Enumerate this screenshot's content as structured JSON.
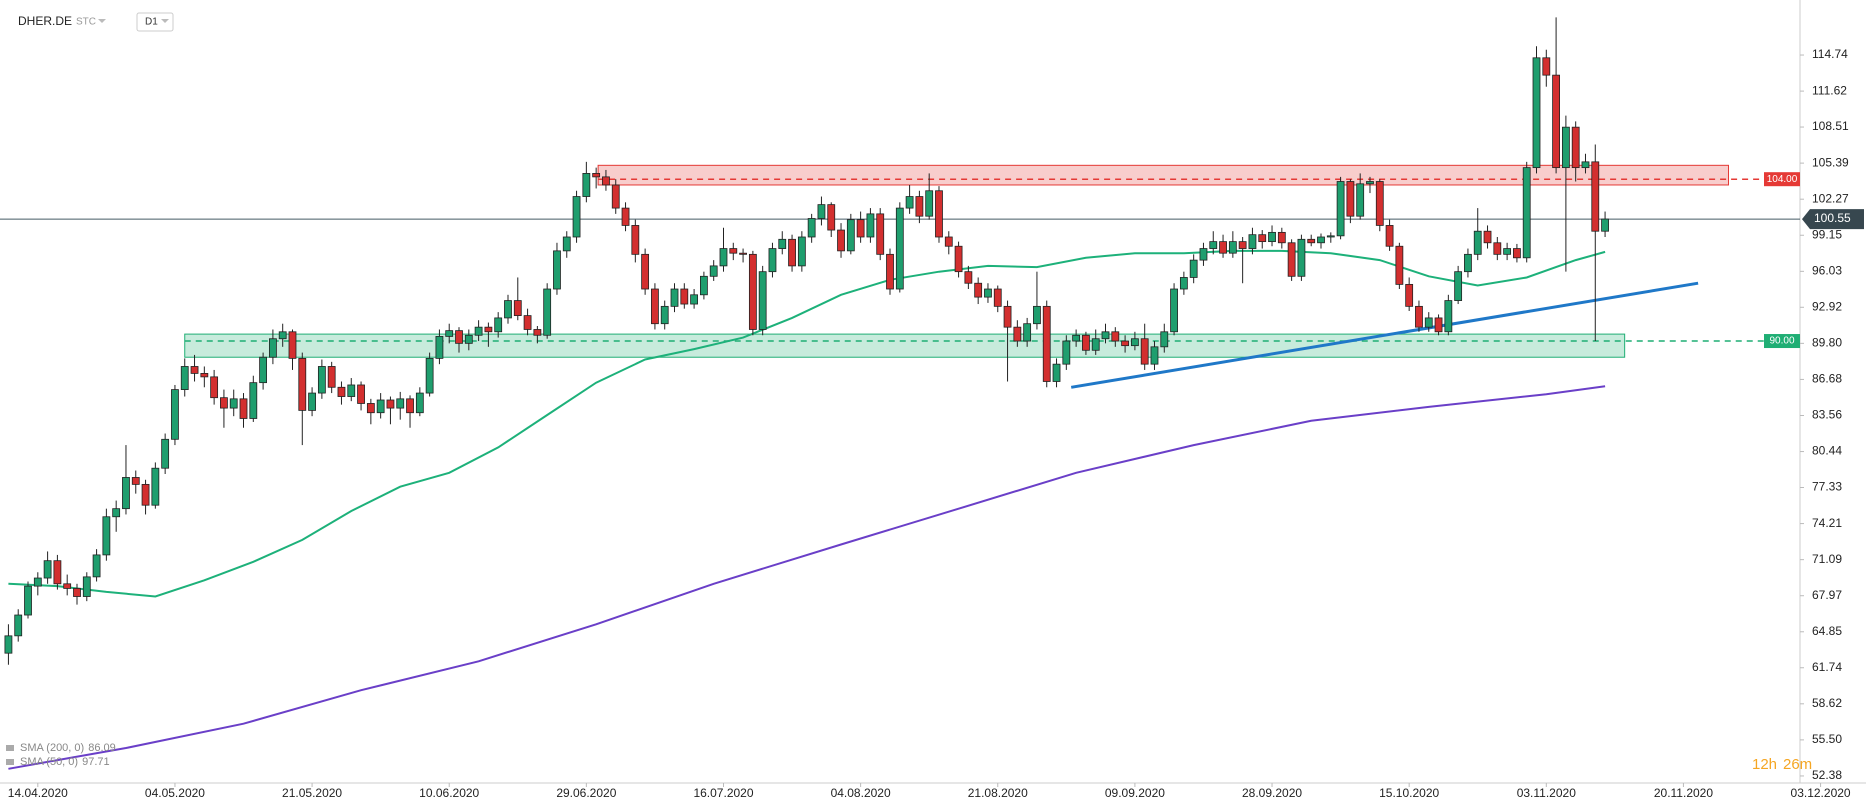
{
  "chart_data": {
    "type": "candlestick",
    "symbol": "DHER.DE",
    "instrument_type": "STC",
    "timeframe": "D1",
    "up_color": "#1f9e6e",
    "down_color": "#d32f2f",
    "ohlc": [
      [
        63.0,
        65.5,
        62.0,
        64.5
      ],
      [
        64.5,
        66.8,
        64.0,
        66.3
      ],
      [
        66.3,
        69.2,
        66.0,
        68.8
      ],
      [
        68.8,
        70.0,
        68.0,
        69.5
      ],
      [
        69.5,
        71.8,
        69.0,
        71.0
      ],
      [
        71.0,
        71.5,
        68.5,
        69.0
      ],
      [
        69.0,
        69.8,
        68.0,
        68.6
      ],
      [
        68.6,
        69.0,
        67.2,
        67.9
      ],
      [
        67.9,
        70.0,
        67.5,
        69.6
      ],
      [
        69.6,
        72.0,
        69.2,
        71.5
      ],
      [
        71.5,
        75.5,
        71.0,
        74.8
      ],
      [
        74.8,
        76.2,
        73.5,
        75.5
      ],
      [
        75.5,
        81.0,
        75.0,
        78.2
      ],
      [
        78.2,
        78.8,
        76.8,
        77.6
      ],
      [
        77.6,
        78.0,
        75.0,
        75.8
      ],
      [
        75.8,
        79.5,
        75.5,
        79.0
      ],
      [
        79.0,
        82.0,
        78.5,
        81.5
      ],
      [
        81.5,
        86.2,
        81.0,
        85.8
      ],
      [
        85.8,
        88.5,
        85.2,
        87.8
      ],
      [
        87.8,
        88.8,
        86.5,
        87.2
      ],
      [
        87.2,
        87.8,
        86.0,
        86.9
      ],
      [
        86.9,
        87.5,
        84.5,
        85.1
      ],
      [
        85.1,
        85.8,
        82.5,
        84.2
      ],
      [
        84.2,
        85.8,
        83.5,
        85.0
      ],
      [
        85.0,
        85.5,
        82.5,
        83.3
      ],
      [
        83.3,
        87.0,
        83.0,
        86.4
      ],
      [
        86.4,
        89.0,
        85.8,
        88.6
      ],
      [
        88.6,
        91.0,
        88.0,
        90.2
      ],
      [
        90.2,
        91.5,
        89.5,
        90.8
      ],
      [
        90.8,
        91.0,
        87.5,
        88.5
      ],
      [
        88.5,
        89.0,
        81.0,
        84.0
      ],
      [
        84.0,
        86.0,
        83.5,
        85.5
      ],
      [
        85.5,
        88.4,
        85.0,
        87.8
      ],
      [
        87.8,
        88.2,
        85.5,
        86.0
      ],
      [
        86.0,
        86.5,
        84.5,
        85.2
      ],
      [
        85.2,
        86.8,
        84.8,
        86.2
      ],
      [
        86.2,
        86.5,
        84.0,
        84.6
      ],
      [
        84.6,
        85.0,
        82.8,
        83.8
      ],
      [
        83.8,
        85.5,
        83.3,
        84.9
      ],
      [
        84.9,
        85.2,
        82.8,
        84.2
      ],
      [
        84.2,
        85.6,
        83.2,
        85.0
      ],
      [
        85.0,
        85.3,
        82.5,
        83.8
      ],
      [
        83.8,
        86.0,
        83.5,
        85.5
      ],
      [
        85.5,
        89.0,
        85.2,
        88.5
      ],
      [
        88.5,
        91.0,
        88.0,
        90.4
      ],
      [
        90.4,
        91.5,
        89.8,
        90.9
      ],
      [
        90.9,
        91.2,
        89.0,
        89.8
      ],
      [
        89.8,
        91.0,
        89.2,
        90.5
      ],
      [
        90.5,
        91.8,
        90.0,
        91.2
      ],
      [
        91.2,
        91.6,
        89.5,
        90.8
      ],
      [
        90.8,
        92.5,
        90.3,
        92.0
      ],
      [
        92.0,
        94.0,
        91.5,
        93.5
      ],
      [
        93.5,
        95.5,
        91.8,
        92.2
      ],
      [
        92.2,
        92.8,
        90.5,
        91.0
      ],
      [
        91.0,
        91.3,
        89.8,
        90.5
      ],
      [
        90.5,
        95.0,
        90.2,
        94.5
      ],
      [
        94.5,
        98.5,
        94.0,
        97.8
      ],
      [
        97.8,
        99.5,
        97.2,
        99.0
      ],
      [
        99.0,
        103.0,
        98.5,
        102.5
      ],
      [
        102.5,
        105.5,
        102.0,
        104.5
      ],
      [
        104.5,
        105.0,
        103.2,
        104.2
      ],
      [
        104.2,
        104.8,
        103.0,
        103.5
      ],
      [
        103.5,
        104.0,
        101.0,
        101.5
      ],
      [
        101.5,
        102.0,
        99.5,
        100.0
      ],
      [
        100.0,
        100.5,
        96.8,
        97.5
      ],
      [
        97.5,
        98.0,
        94.0,
        94.5
      ],
      [
        94.5,
        95.0,
        91.0,
        91.5
      ],
      [
        91.5,
        93.5,
        91.0,
        93.0
      ],
      [
        93.0,
        95.0,
        92.5,
        94.5
      ],
      [
        94.5,
        95.0,
        92.8,
        93.2
      ],
      [
        93.2,
        94.5,
        92.8,
        94.0
      ],
      [
        94.0,
        96.0,
        93.6,
        95.6
      ],
      [
        95.6,
        97.0,
        95.2,
        96.5
      ],
      [
        96.5,
        99.8,
        96.0,
        98.0
      ],
      [
        98.0,
        98.5,
        97.0,
        97.6
      ],
      [
        97.6,
        98.0,
        96.8,
        97.5
      ],
      [
        97.5,
        97.8,
        90.5,
        91.0
      ],
      [
        91.0,
        96.5,
        90.5,
        96.0
      ],
      [
        96.0,
        98.5,
        95.5,
        98.0
      ],
      [
        98.0,
        99.5,
        97.5,
        98.8
      ],
      [
        98.8,
        99.2,
        96.0,
        96.5
      ],
      [
        96.5,
        99.5,
        96.0,
        99.0
      ],
      [
        99.0,
        101.0,
        98.5,
        100.6
      ],
      [
        100.6,
        102.5,
        100.0,
        101.8
      ],
      [
        101.8,
        102.0,
        99.0,
        99.6
      ],
      [
        99.6,
        100.2,
        97.2,
        97.8
      ],
      [
        97.8,
        101.0,
        97.5,
        100.5
      ],
      [
        100.5,
        101.2,
        98.5,
        99.0
      ],
      [
        99.0,
        101.5,
        98.5,
        101.0
      ],
      [
        101.0,
        101.5,
        97.0,
        97.5
      ],
      [
        97.5,
        98.0,
        94.0,
        94.5
      ],
      [
        94.5,
        102.0,
        94.2,
        101.5
      ],
      [
        101.5,
        103.5,
        101.0,
        102.5
      ],
      [
        102.5,
        103.0,
        100.2,
        100.8
      ],
      [
        100.8,
        104.5,
        100.5,
        103.0
      ],
      [
        103.0,
        103.4,
        98.5,
        99.0
      ],
      [
        99.0,
        99.5,
        97.5,
        98.2
      ],
      [
        98.2,
        98.6,
        95.5,
        96.0
      ],
      [
        96.0,
        96.5,
        94.5,
        95.0
      ],
      [
        95.0,
        95.5,
        93.2,
        93.8
      ],
      [
        93.8,
        95.0,
        93.3,
        94.5
      ],
      [
        94.5,
        94.8,
        92.5,
        93.0
      ],
      [
        93.0,
        93.5,
        86.5,
        91.2
      ],
      [
        91.2,
        91.8,
        89.5,
        90.0
      ],
      [
        90.0,
        92.0,
        89.5,
        91.5
      ],
      [
        91.5,
        96.0,
        91.0,
        93.0
      ],
      [
        93.0,
        93.5,
        86.0,
        86.5
      ],
      [
        86.5,
        88.5,
        86.0,
        88.0
      ],
      [
        88.0,
        90.5,
        87.5,
        90.0
      ],
      [
        90.0,
        91.0,
        89.5,
        90.5
      ],
      [
        90.5,
        90.8,
        88.8,
        89.2
      ],
      [
        89.2,
        91.0,
        88.8,
        90.2
      ],
      [
        90.2,
        91.5,
        89.8,
        90.8
      ],
      [
        90.8,
        91.2,
        89.5,
        90.0
      ],
      [
        90.0,
        90.5,
        89.0,
        89.6
      ],
      [
        89.6,
        90.8,
        89.2,
        90.2
      ],
      [
        90.2,
        91.5,
        87.5,
        88.0
      ],
      [
        88.0,
        90.0,
        87.5,
        89.5
      ],
      [
        89.5,
        91.5,
        89.0,
        90.8
      ],
      [
        90.8,
        95.0,
        90.5,
        94.5
      ],
      [
        94.5,
        96.0,
        94.0,
        95.5
      ],
      [
        95.5,
        97.5,
        95.0,
        97.0
      ],
      [
        97.0,
        98.5,
        96.5,
        98.0
      ],
      [
        98.0,
        99.5,
        97.5,
        98.6
      ],
      [
        98.6,
        99.2,
        97.2,
        97.6
      ],
      [
        97.6,
        99.5,
        97.2,
        98.6
      ],
      [
        98.6,
        99.0,
        95.0,
        98.0
      ],
      [
        98.0,
        99.8,
        97.5,
        99.2
      ],
      [
        99.2,
        99.6,
        98.0,
        98.6
      ],
      [
        98.6,
        100.0,
        98.2,
        99.4
      ],
      [
        99.4,
        99.8,
        98.0,
        98.5
      ],
      [
        98.5,
        98.8,
        95.2,
        95.6
      ],
      [
        95.6,
        99.2,
        95.2,
        98.8
      ],
      [
        98.8,
        99.2,
        98.2,
        98.5
      ],
      [
        98.5,
        99.3,
        98.0,
        99.0
      ],
      [
        99.0,
        99.4,
        98.5,
        99.1
      ],
      [
        99.1,
        104.2,
        98.8,
        103.8
      ],
      [
        103.8,
        104.0,
        100.2,
        100.8
      ],
      [
        100.8,
        104.5,
        100.5,
        103.6
      ],
      [
        103.6,
        104.2,
        102.8,
        103.8
      ],
      [
        103.8,
        104.0,
        99.5,
        100.0
      ],
      [
        100.0,
        100.5,
        97.8,
        98.2
      ],
      [
        98.2,
        98.5,
        94.5,
        94.9
      ],
      [
        94.9,
        95.5,
        92.6,
        93.0
      ],
      [
        93.0,
        93.5,
        90.8,
        91.2
      ],
      [
        91.2,
        92.5,
        90.8,
        92.0
      ],
      [
        92.0,
        92.3,
        90.5,
        90.8
      ],
      [
        90.8,
        94.0,
        90.5,
        93.5
      ],
      [
        93.5,
        96.5,
        93.2,
        96.0
      ],
      [
        96.0,
        98.0,
        95.5,
        97.5
      ],
      [
        97.5,
        101.5,
        97.0,
        99.5
      ],
      [
        99.5,
        100.0,
        98.0,
        98.5
      ],
      [
        98.5,
        99.0,
        97.0,
        97.5
      ],
      [
        97.5,
        98.5,
        97.0,
        98.0
      ],
      [
        98.0,
        98.4,
        96.8,
        97.2
      ],
      [
        97.2,
        105.5,
        96.8,
        105.0
      ],
      [
        105.0,
        115.5,
        104.5,
        114.5
      ],
      [
        114.5,
        115.2,
        112.0,
        113.0
      ],
      [
        113.0,
        118.0,
        104.5,
        105.0
      ],
      [
        105.0,
        109.5,
        96.0,
        108.5
      ],
      [
        108.5,
        109.0,
        103.8,
        105.0
      ],
      [
        105.0,
        106.2,
        104.5,
        105.5
      ],
      [
        105.5,
        107.0,
        90.0,
        99.5
      ],
      [
        99.5,
        101.2,
        99.0,
        100.55
      ]
    ],
    "sma": [
      {
        "name": "SMA (200, 0)",
        "color": "#6a3fc8",
        "x": [
          0,
          12,
          24,
          36,
          48,
          60,
          72,
          85,
          97,
          109,
          121,
          133,
          145,
          157,
          163
        ],
        "values": [
          53.0,
          54.8,
          56.9,
          59.8,
          62.3,
          65.5,
          69.0,
          72.4,
          75.5,
          78.6,
          81.0,
          83.1,
          84.3,
          85.4,
          86.09
        ]
      },
      {
        "name": "SMA (50, 0)",
        "color": "#1db17a",
        "x": [
          0,
          5,
          10,
          15,
          20,
          25,
          30,
          35,
          40,
          45,
          50,
          55,
          60,
          65,
          70,
          75,
          80,
          85,
          90,
          95,
          100,
          105,
          110,
          115,
          120,
          125,
          130,
          135,
          140,
          145,
          150,
          155,
          160,
          163
        ],
        "values": [
          69.0,
          68.8,
          68.3,
          67.9,
          69.3,
          70.9,
          72.8,
          75.3,
          77.4,
          78.6,
          80.8,
          83.6,
          86.4,
          88.4,
          89.3,
          90.3,
          92.0,
          94.0,
          95.3,
          96.0,
          96.5,
          96.4,
          97.2,
          97.6,
          97.6,
          97.8,
          97.8,
          97.6,
          97.0,
          95.6,
          94.8,
          95.5,
          97.0,
          97.71
        ]
      }
    ],
    "zones": [
      {
        "color": "#e53935",
        "x": [
          60.2,
          175.6
        ],
        "range": [
          103.5,
          105.2
        ],
        "level": {
          "value": 104,
          "label": "104.00"
        }
      },
      {
        "color": "#1fae74",
        "x": [
          18,
          165
        ],
        "range": [
          88.6,
          90.6
        ],
        "level": {
          "value": 90,
          "label": "90.00"
        }
      }
    ],
    "trendline": {
      "color": "#1f78c8",
      "x": [
        108.5,
        172.5
      ],
      "values": [
        86.0,
        95.0
      ]
    },
    "last_price": 100.55,
    "countdown": [
      "12h",
      "26m"
    ],
    "xlim": [
      -0.86,
      182.9
    ],
    "xticks": [
      {
        "value": 3,
        "label": "14.04.2020"
      },
      {
        "value": 17,
        "label": "04.05.2020"
      },
      {
        "value": 31,
        "label": "21.05.2020"
      },
      {
        "value": 45,
        "label": "10.06.2020"
      },
      {
        "value": 59,
        "label": "29.06.2020"
      },
      {
        "value": 73,
        "label": "16.07.2020"
      },
      {
        "value": 87,
        "label": "04.08.2020"
      },
      {
        "value": 101,
        "label": "21.08.2020"
      },
      {
        "value": 115,
        "label": "09.09.2020"
      },
      {
        "value": 129,
        "label": "28.09.2020"
      },
      {
        "value": 143,
        "label": "15.10.2020"
      },
      {
        "value": 157,
        "label": "03.11.2020"
      },
      {
        "value": 171,
        "label": "20.11.2020"
      },
      {
        "value": 185,
        "label": "03.12.2020"
      }
    ],
    "ylim": [
      51.77,
      119.5
    ],
    "yticks": [
      114.74,
      111.62,
      108.51,
      105.39,
      102.27,
      99.15,
      96.03,
      92.92,
      {
        "value": 89.8,
        "label": "89.80"
      },
      86.68,
      83.56,
      80.44,
      77.33,
      74.21,
      71.09,
      67.97,
      64.85,
      61.74,
      58.62,
      {
        "value": 55.5,
        "label": "55.50"
      },
      52.38
    ]
  }
}
